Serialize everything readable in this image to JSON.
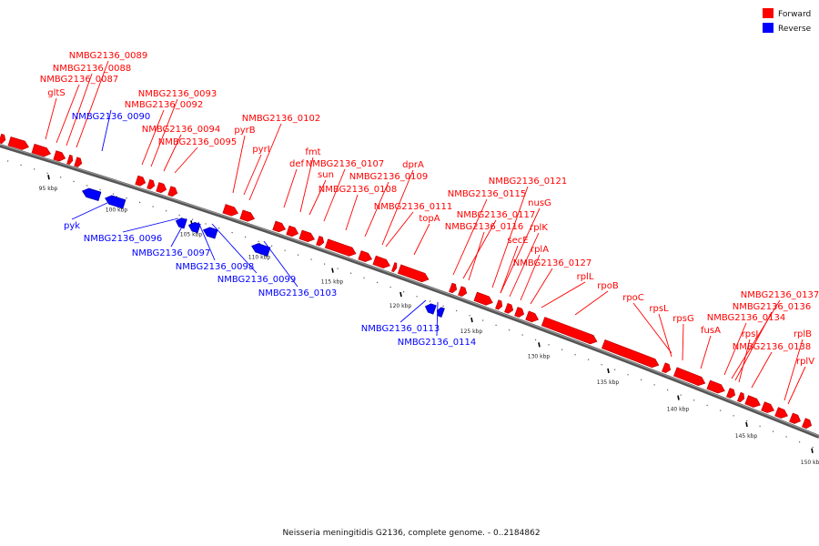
{
  "legend": {
    "forward_label": "Forward",
    "reverse_label": "Reverse",
    "forward_color": "#ff0000",
    "reverse_color": "#0000ff"
  },
  "caption": "Neisseria meningitidis G2136, complete genome. - 0..2184862",
  "ticks": [
    "95 kbp",
    "100 kbp",
    "105 kbp",
    "110 kbp",
    "115 kbp",
    "120 kbp",
    "125 kbp",
    "130 kbp",
    "135 kbp",
    "140 kbp",
    "145 kbp",
    "150 kbp"
  ],
  "forward_genes": [
    "NMBG2136_0089",
    "NMBG2136_0088",
    "NMBG2136_0087",
    "gltS",
    "NMBG2136_0093",
    "NMBG2136_0092",
    "NMBG2136_0094",
    "NMBG2136_0095",
    "NMBG2136_0102",
    "pyrB",
    "pyrI",
    "fmt",
    "def",
    "sun",
    "NMBG2136_0107",
    "NMBG2136_0109",
    "NMBG2136_0108",
    "dprA",
    "NMBG2136_0111",
    "topA",
    "NMBG2136_0121",
    "NMBG2136_0115",
    "NMBG2136_0117",
    "nusG",
    "NMBG2136_0116",
    "rplK",
    "secE",
    "rplA",
    "NMBG2136_0127",
    "rplL",
    "rpoB",
    "rpoC",
    "rpsL",
    "rpsG",
    "fusA",
    "NMBG2136_0137",
    "NMBG2136_0136",
    "NMBG2136_0134",
    "rpsJ",
    "NMBG2136_0138",
    "rplB",
    "rplV"
  ],
  "reverse_genes": [
    "NMBG2136_0090",
    "pyk",
    "NMBG2136_0096",
    "NMBG2136_0097",
    "NMBG2136_0098",
    "NMBG2136_0099",
    "NMBG2136_0103",
    "NMBG2136_0113",
    "NMBG2136_0114"
  ]
}
